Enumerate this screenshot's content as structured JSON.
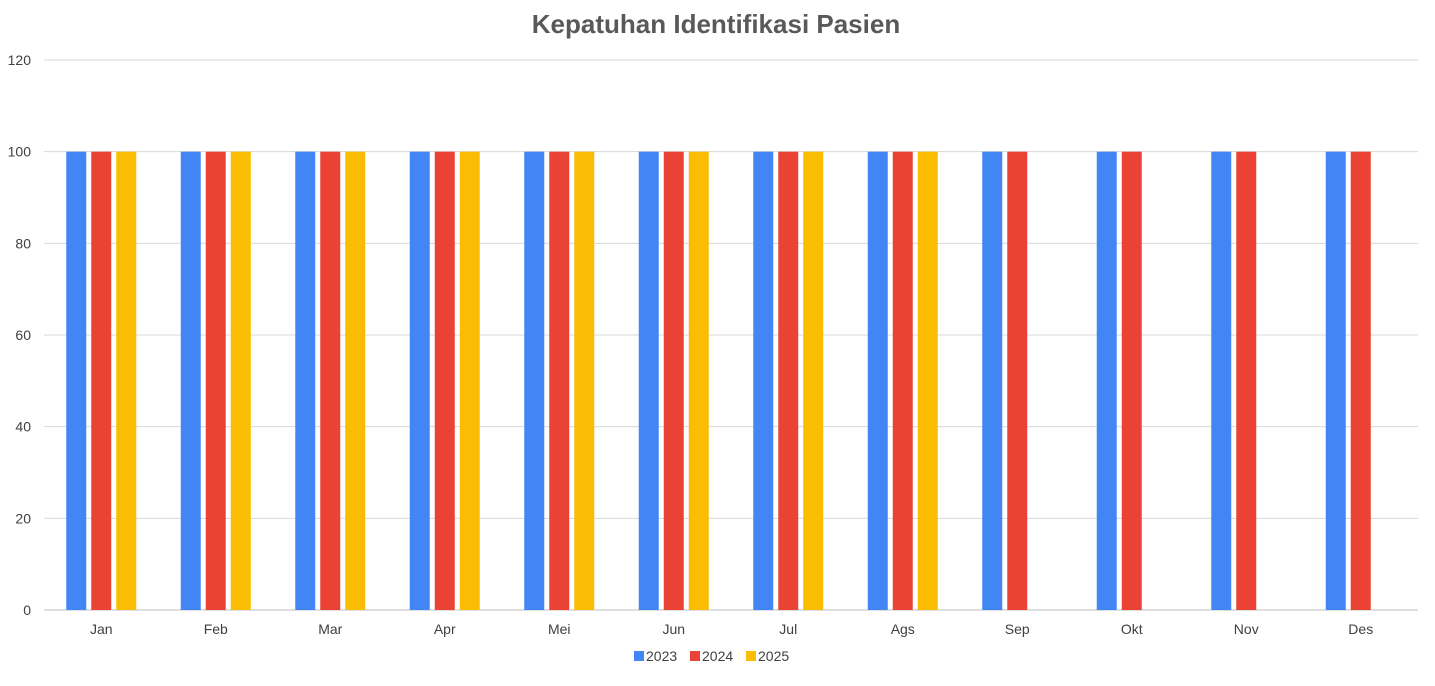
{
  "chart_data": {
    "type": "bar",
    "title": "Kepatuhan Identifikasi Pasien",
    "xlabel": "",
    "ylabel": "",
    "ylim": [
      0,
      120
    ],
    "yticks": [
      0,
      20,
      40,
      60,
      80,
      100,
      120
    ],
    "grid": true,
    "legend_position": "bottom",
    "categories": [
      "Jan",
      "Feb",
      "Mar",
      "Apr",
      "Mei",
      "Jun",
      "Jul",
      "Ags",
      "Sep",
      "Okt",
      "Nov",
      "Des"
    ],
    "series": [
      {
        "name": "2023",
        "color": "#4285f4",
        "values": [
          100,
          100,
          100,
          100,
          100,
          100,
          100,
          100,
          100,
          100,
          100,
          100
        ]
      },
      {
        "name": "2024",
        "color": "#ea4335",
        "values": [
          100,
          100,
          100,
          100,
          100,
          100,
          100,
          100,
          100,
          100,
          100,
          100
        ]
      },
      {
        "name": "2025",
        "color": "#fbbc04",
        "values": [
          100,
          100,
          100,
          100,
          100,
          100,
          100,
          100,
          null,
          null,
          null,
          null
        ]
      }
    ]
  }
}
